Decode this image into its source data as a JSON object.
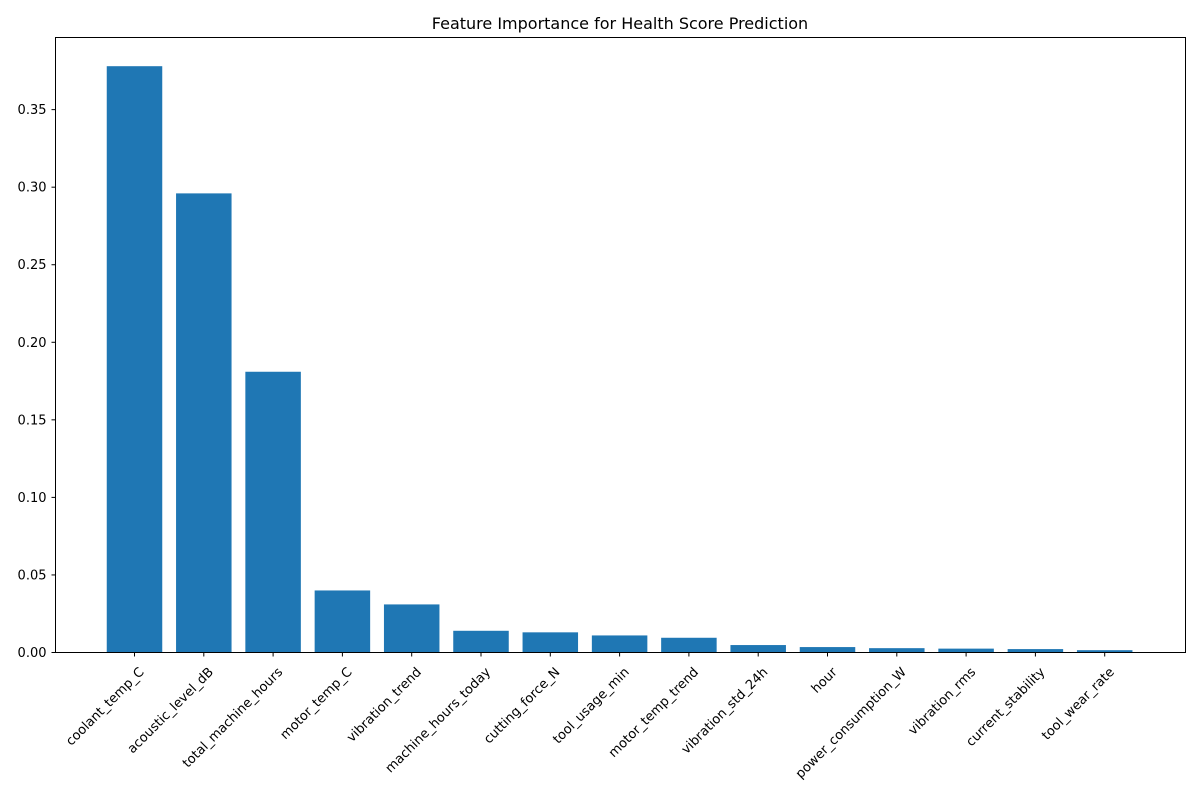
{
  "chart_data": {
    "type": "bar",
    "title": "Feature Importance for Health Score Prediction",
    "xlabel": "",
    "ylabel": "",
    "categories": [
      "coolant_temp_C",
      "acoustic_level_dB",
      "total_machine_hours",
      "motor_temp_C",
      "vibration_trend",
      "machine_hours_today",
      "cutting_force_N",
      "tool_usage_min",
      "motor_temp_trend",
      "vibration_std_24h",
      "hour",
      "power_consumption_W",
      "vibration_rms",
      "current_stability",
      "tool_wear_rate"
    ],
    "values": [
      0.378,
      0.296,
      0.181,
      0.04,
      0.031,
      0.014,
      0.013,
      0.011,
      0.0095,
      0.0048,
      0.0035,
      0.0028,
      0.0025,
      0.0022,
      0.0015
    ],
    "ylim": [
      0,
      0.3965
    ],
    "yticks": [
      0.0,
      0.05,
      0.1,
      0.15,
      0.2,
      0.25,
      0.3,
      0.35
    ],
    "ytick_labels": [
      "0.00",
      "0.05",
      "0.10",
      "0.15",
      "0.20",
      "0.25",
      "0.30",
      "0.35"
    ],
    "xtick_rotation_deg": 45,
    "bar_color": "#1f77b4",
    "grid": false,
    "legend": "none"
  }
}
